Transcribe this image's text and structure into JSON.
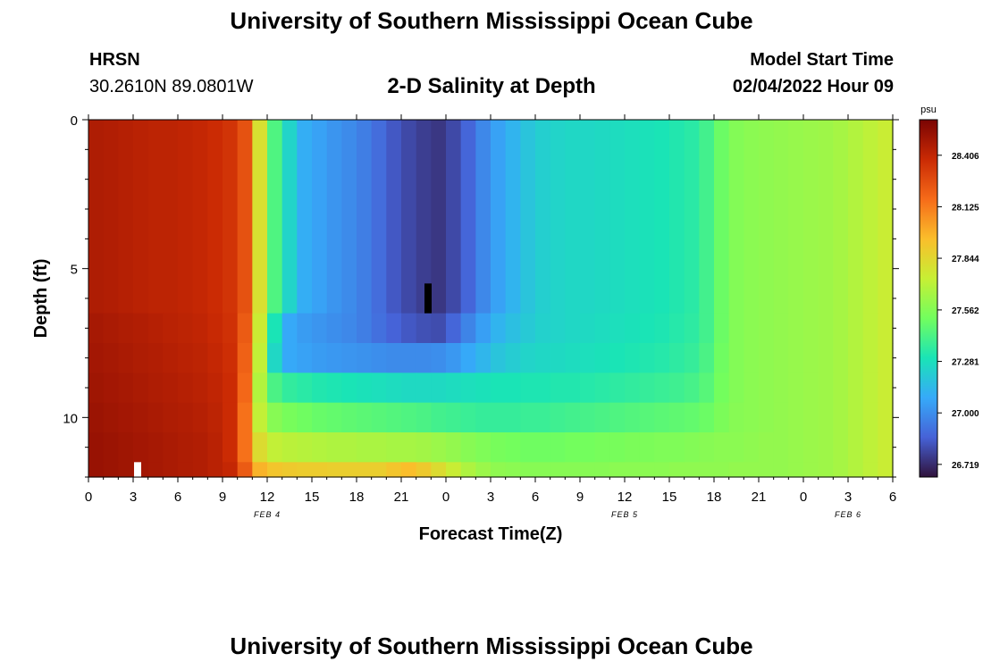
{
  "header": {
    "title": "University of Southern Mississippi Ocean Cube",
    "station": "HRSN",
    "coords": "30.2610N  89.0801W",
    "subtitle": "2-D Salinity at Depth",
    "model_label": "Model Start Time",
    "model_time": "02/04/2022 Hour 09"
  },
  "footer": {
    "title": "University of Southern Mississippi Ocean Cube"
  },
  "colors": {
    "palette": [
      "#30123b",
      "#4662d7",
      "#36aaf9",
      "#1ae4b6",
      "#72fe5e",
      "#c7ef34",
      "#fabe2b",
      "#f66b19",
      "#ca2a04",
      "#7a0403"
    ],
    "no_data_light": "#ffffff",
    "no_data_dark": "#000000"
  },
  "chart_data": {
    "type": "heatmap",
    "title": "2-D Salinity at Depth",
    "xlabel": "Forecast Time(Z)",
    "ylabel": "Depth (ft)",
    "x_tick_labels": [
      "0",
      "3",
      "6",
      "9",
      "12",
      "15",
      "18",
      "21",
      "0",
      "3",
      "6",
      "9",
      "12",
      "15",
      "18",
      "21",
      "0",
      "3",
      "6"
    ],
    "x_hours_range": [
      0,
      54
    ],
    "date_labels": [
      {
        "label": "FEB 4",
        "hour": 12
      },
      {
        "label": "FEB 5",
        "hour": 36
      },
      {
        "label": "FEB 6",
        "hour": 51
      }
    ],
    "y_tick_labels": [
      "0",
      "5",
      "10"
    ],
    "ylim": [
      0,
      12
    ],
    "y_inverted": true,
    "colorbar": {
      "unit": "psu",
      "range": [
        26.65,
        28.6
      ],
      "tick_labels": [
        "28.406",
        "28.125",
        "27.844",
        "27.562",
        "27.281",
        "27.000",
        "26.719"
      ]
    },
    "hours": [
      0,
      1,
      2,
      3,
      4,
      5,
      6,
      7,
      8,
      9,
      10,
      11,
      12,
      13,
      14,
      15,
      16,
      17,
      18,
      19,
      20,
      21,
      22,
      23,
      24,
      25,
      26,
      27,
      28,
      29,
      30,
      31,
      32,
      33,
      34,
      35,
      36,
      37,
      38,
      39,
      40,
      41,
      42,
      43,
      44,
      45,
      46,
      47,
      48,
      49,
      50,
      51,
      52,
      53
    ],
    "layers": [
      {
        "depth_top": 0.0,
        "depth_bottom": 6.5,
        "values": [
          28.46,
          28.45,
          28.44,
          28.43,
          28.42,
          28.42,
          28.41,
          28.4,
          28.38,
          28.35,
          28.25,
          27.8,
          27.43,
          27.24,
          27.1,
          27.06,
          27.02,
          26.99,
          26.95,
          26.9,
          26.84,
          26.8,
          26.77,
          26.75,
          26.8,
          26.88,
          26.98,
          27.06,
          27.12,
          27.18,
          27.22,
          27.24,
          27.25,
          27.25,
          27.26,
          27.27,
          27.28,
          27.29,
          27.3,
          27.32,
          27.34,
          27.4,
          27.5,
          27.56,
          27.58,
          27.59,
          27.6,
          27.61,
          27.62,
          27.63,
          27.65,
          27.68,
          27.71,
          27.74
        ]
      },
      {
        "depth_top": 6.5,
        "depth_bottom": 7.5,
        "values": [
          28.48,
          28.47,
          28.46,
          28.45,
          28.44,
          28.43,
          28.42,
          28.41,
          28.39,
          28.36,
          28.22,
          27.75,
          27.3,
          27.08,
          27.04,
          27.02,
          27.0,
          26.98,
          26.95,
          26.91,
          26.87,
          26.84,
          26.82,
          26.81,
          26.88,
          26.97,
          27.05,
          27.12,
          27.16,
          27.2,
          27.23,
          27.24,
          27.25,
          27.26,
          27.27,
          27.28,
          27.29,
          27.3,
          27.31,
          27.33,
          27.35,
          27.4,
          27.5,
          27.56,
          27.58,
          27.59,
          27.6,
          27.61,
          27.62,
          27.63,
          27.65,
          27.68,
          27.71,
          27.74
        ]
      },
      {
        "depth_top": 7.5,
        "depth_bottom": 8.5,
        "values": [
          28.49,
          28.48,
          28.47,
          28.46,
          28.45,
          28.44,
          28.43,
          28.42,
          28.4,
          28.37,
          28.2,
          27.72,
          27.25,
          27.08,
          27.06,
          27.04,
          27.03,
          27.02,
          27.01,
          27.0,
          26.99,
          26.99,
          26.99,
          27.0,
          27.03,
          27.08,
          27.13,
          27.18,
          27.21,
          27.24,
          27.25,
          27.26,
          27.27,
          27.28,
          27.29,
          27.3,
          27.31,
          27.32,
          27.33,
          27.35,
          27.37,
          27.42,
          27.51,
          27.56,
          27.58,
          27.59,
          27.6,
          27.61,
          27.62,
          27.63,
          27.65,
          27.68,
          27.71,
          27.74
        ]
      },
      {
        "depth_top": 8.5,
        "depth_bottom": 9.5,
        "values": [
          28.5,
          28.49,
          28.48,
          28.47,
          28.46,
          28.45,
          28.44,
          28.43,
          28.41,
          28.38,
          28.18,
          27.68,
          27.42,
          27.36,
          27.34,
          27.32,
          27.31,
          27.3,
          27.29,
          27.28,
          27.27,
          27.26,
          27.26,
          27.26,
          27.27,
          27.28,
          27.29,
          27.3,
          27.3,
          27.31,
          27.31,
          27.32,
          27.32,
          27.33,
          27.34,
          27.35,
          27.36,
          27.37,
          27.38,
          27.39,
          27.41,
          27.45,
          27.52,
          27.56,
          27.58,
          27.59,
          27.6,
          27.61,
          27.62,
          27.63,
          27.65,
          27.68,
          27.71,
          27.74
        ]
      },
      {
        "depth_top": 9.5,
        "depth_bottom": 10.5,
        "values": [
          28.51,
          28.5,
          28.49,
          28.48,
          28.47,
          28.46,
          28.45,
          28.44,
          28.42,
          28.38,
          28.15,
          27.72,
          27.57,
          27.53,
          27.51,
          27.49,
          27.48,
          27.47,
          27.46,
          27.45,
          27.44,
          27.43,
          27.42,
          27.4,
          27.39,
          27.38,
          27.37,
          27.37,
          27.37,
          27.38,
          27.38,
          27.39,
          27.4,
          27.41,
          27.42,
          27.43,
          27.44,
          27.45,
          27.46,
          27.47,
          27.48,
          27.5,
          27.54,
          27.57,
          27.58,
          27.59,
          27.6,
          27.61,
          27.62,
          27.63,
          27.65,
          27.68,
          27.71,
          27.74
        ]
      },
      {
        "depth_top": 10.5,
        "depth_bottom": 11.5,
        "values": [
          28.52,
          28.51,
          28.5,
          28.49,
          28.48,
          28.47,
          28.46,
          28.45,
          28.43,
          28.38,
          28.15,
          27.82,
          27.72,
          27.7,
          27.69,
          27.68,
          27.67,
          27.67,
          27.66,
          27.66,
          27.65,
          27.65,
          27.64,
          27.62,
          27.6,
          27.57,
          27.55,
          27.53,
          27.52,
          27.51,
          27.51,
          27.51,
          27.52,
          27.52,
          27.53,
          27.53,
          27.54,
          27.54,
          27.55,
          27.55,
          27.56,
          27.57,
          27.58,
          27.58,
          27.59,
          27.6,
          27.6,
          27.61,
          27.62,
          27.63,
          27.65,
          27.68,
          27.71,
          27.74
        ]
      },
      {
        "depth_top": 11.5,
        "depth_bottom": 12.0,
        "values": [
          28.52,
          28.51,
          28.5,
          28.49,
          28.48,
          28.47,
          28.46,
          28.45,
          28.43,
          28.4,
          28.22,
          27.98,
          27.92,
          27.9,
          27.89,
          27.89,
          27.88,
          27.88,
          27.88,
          27.88,
          27.92,
          27.95,
          27.9,
          27.82,
          27.74,
          27.67,
          27.62,
          27.59,
          27.58,
          27.57,
          27.57,
          27.57,
          27.57,
          27.57,
          27.57,
          27.58,
          27.58,
          27.58,
          27.58,
          27.59,
          27.59,
          27.59,
          27.59,
          27.6,
          27.6,
          27.6,
          27.6,
          27.61,
          27.62,
          27.63,
          27.65,
          27.68,
          27.71,
          27.74
        ]
      }
    ],
    "no_data_marks": [
      {
        "color": "light",
        "hour": 3.3,
        "depth_top": 11.5,
        "depth_bottom": 12.0
      },
      {
        "color": "dark",
        "hour": 22.8,
        "depth_top": 5.5,
        "depth_bottom": 6.5
      }
    ]
  }
}
